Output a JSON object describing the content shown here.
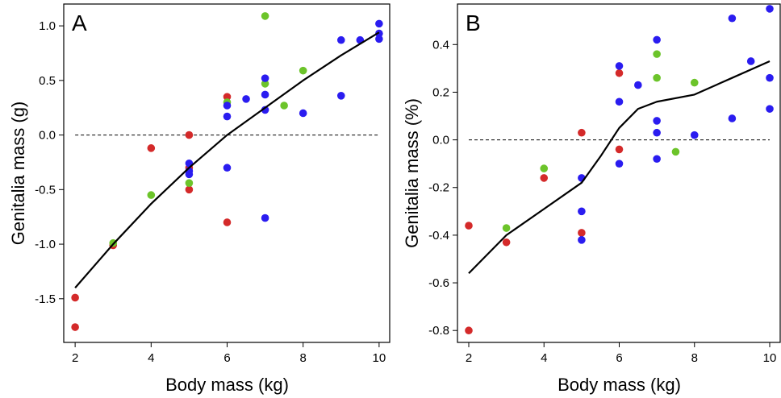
{
  "chart_data": [
    {
      "type": "scatter",
      "panel_label": "A",
      "xlabel": "Body mass (kg)",
      "ylabel": "Genitalia mass (g)",
      "xlim": [
        1.7,
        10.3
      ],
      "ylim": [
        -1.9,
        1.2
      ],
      "xticks": [
        2,
        4,
        6,
        8,
        10
      ],
      "xtick_labels": [
        "2",
        "4",
        "6",
        "8",
        "10"
      ],
      "yticks": [
        -1.5,
        -1.0,
        -0.5,
        0.0,
        0.5,
        1.0
      ],
      "ytick_labels": [
        "-1.5",
        "-1.0",
        "-0.5",
        "0.0",
        "0.5",
        "1.0"
      ],
      "reference_line_y": 0,
      "grid": false,
      "colors": {
        "red": "#d42a2a",
        "green": "#6cc42a",
        "blue": "#2a1cf0",
        "line": "#000000"
      },
      "series": [
        {
          "color": "red",
          "x": [
            2,
            2,
            3,
            4,
            5,
            5,
            5,
            6,
            6
          ],
          "y": [
            -1.49,
            -1.76,
            -1.01,
            -0.12,
            0.0,
            -0.3,
            -0.5,
            0.35,
            -0.8
          ]
        },
        {
          "color": "green",
          "x": [
            3,
            4,
            5,
            6,
            7,
            7,
            7.5,
            8
          ],
          "y": [
            -0.99,
            -0.55,
            -0.44,
            0.3,
            1.09,
            0.47,
            0.27,
            0.59
          ]
        },
        {
          "color": "blue",
          "x": [
            5,
            5,
            5,
            6,
            6,
            6,
            6.5,
            7,
            7,
            7,
            7,
            8,
            9,
            9,
            9.5,
            10,
            10,
            10
          ],
          "y": [
            -0.26,
            -0.33,
            -0.36,
            0.27,
            0.17,
            -0.3,
            0.33,
            0.52,
            0.37,
            0.23,
            -0.76,
            0.2,
            0.36,
            0.87,
            0.87,
            1.02,
            0.93,
            0.88
          ]
        }
      ],
      "fit_line": {
        "x": [
          2,
          3,
          4,
          5,
          6,
          7,
          8,
          9,
          10
        ],
        "y": [
          -1.4,
          -1.0,
          -0.63,
          -0.3,
          0.0,
          0.25,
          0.5,
          0.73,
          0.94
        ]
      }
    },
    {
      "type": "scatter",
      "panel_label": "B",
      "xlabel": "Body mass (kg)",
      "ylabel": "Genitalia mass (%)",
      "xlim": [
        1.7,
        10.3
      ],
      "ylim": [
        -0.85,
        0.57
      ],
      "xticks": [
        2,
        4,
        6,
        8,
        10
      ],
      "xtick_labels": [
        "2",
        "4",
        "6",
        "8",
        "10"
      ],
      "yticks": [
        -0.8,
        -0.6,
        -0.4,
        -0.2,
        0.0,
        0.2,
        0.4
      ],
      "ytick_labels": [
        "-0.8",
        "-0.6",
        "-0.4",
        "-0.2",
        "0.0",
        "0.2",
        "0.4"
      ],
      "reference_line_y": 0,
      "grid": false,
      "colors": {
        "red": "#d42a2a",
        "green": "#6cc42a",
        "blue": "#2a1cf0",
        "line": "#000000"
      },
      "series": [
        {
          "color": "red",
          "x": [
            2,
            2,
            3,
            4,
            5,
            5,
            6,
            6
          ],
          "y": [
            -0.36,
            -0.8,
            -0.43,
            -0.16,
            0.03,
            -0.39,
            0.28,
            -0.04
          ]
        },
        {
          "color": "green",
          "x": [
            3,
            4,
            7,
            7,
            7.5,
            8
          ],
          "y": [
            -0.37,
            -0.12,
            0.36,
            0.26,
            -0.05,
            0.24
          ]
        },
        {
          "color": "blue",
          "x": [
            5,
            5,
            5,
            6,
            6,
            6,
            6.5,
            7,
            7,
            7,
            7,
            8,
            9,
            9,
            9.5,
            10,
            10,
            10
          ],
          "y": [
            -0.16,
            -0.3,
            -0.42,
            0.31,
            0.16,
            -0.1,
            0.23,
            0.42,
            0.08,
            0.03,
            -0.08,
            0.02,
            0.51,
            0.09,
            0.33,
            0.55,
            0.26,
            0.13
          ]
        }
      ],
      "fit_line": {
        "x": [
          2,
          3,
          4,
          5,
          5.5,
          6,
          6.5,
          7,
          8,
          9,
          10
        ],
        "y": [
          -0.56,
          -0.4,
          -0.29,
          -0.18,
          -0.07,
          0.05,
          0.13,
          0.16,
          0.19,
          0.26,
          0.33
        ]
      }
    }
  ]
}
